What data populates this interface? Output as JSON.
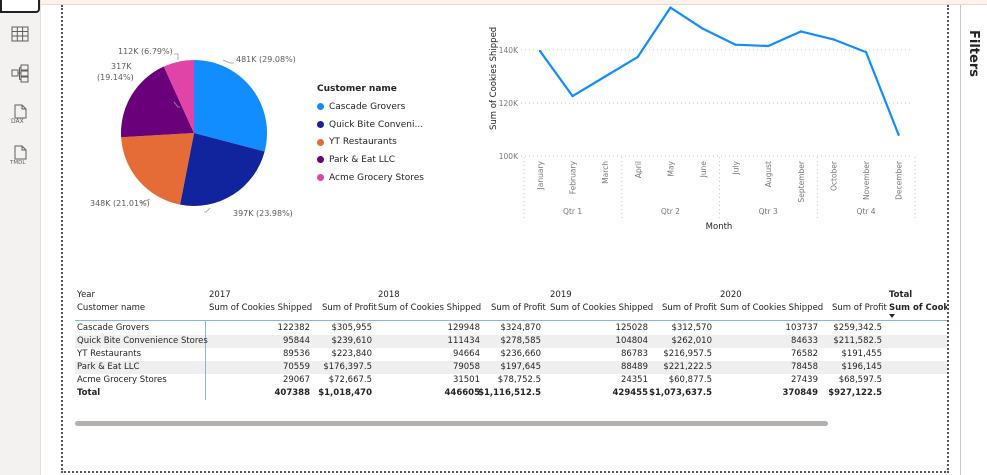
{
  "sidebar": {
    "items": [
      {
        "icon": "table-view-icon"
      },
      {
        "icon": "model-view-icon"
      },
      {
        "icon": "dax-query-icon",
        "label": "DAX"
      },
      {
        "icon": "tmdl-view-icon",
        "label": "TMDL"
      }
    ]
  },
  "filters_pane": {
    "label": "Filters"
  },
  "pie": {
    "legend_title": "Customer name",
    "slices": [
      {
        "name": "Cascade Grovers",
        "legend": "Cascade Grovers",
        "label": "481K (29.08%)",
        "percent": 29.08,
        "color": "#118dff"
      },
      {
        "name": "Quick Bite Convenience Stores",
        "legend": "Quick Bite Conveni...",
        "label": "397K (23.98%)",
        "percent": 23.98,
        "color": "#12239e"
      },
      {
        "name": "YT Restaurants",
        "legend": "YT Restaurants",
        "label": "348K (21.01%)",
        "percent": 21.01,
        "color": "#e66c37"
      },
      {
        "name": "Park & Eat LLC",
        "legend": "Park & Eat LLC",
        "label": "317K (19.14%)",
        "label_line1": "317K",
        "label_line2": "(19.14%)",
        "percent": 19.14,
        "color": "#6b007b"
      },
      {
        "name": "Acme Grocery Stores",
        "legend": "Acme Grocery Stores",
        "label": "112K (6.79%)",
        "percent": 6.79,
        "color": "#e044a7"
      }
    ]
  },
  "chart_data": {
    "type": "line",
    "xlabel": "Month",
    "ylabel": "Sum of Cookies Shipped",
    "categories": [
      "January",
      "February",
      "March",
      "April",
      "May",
      "June",
      "July",
      "August",
      "September",
      "October",
      "November",
      "December"
    ],
    "groups": [
      "Qtr 1",
      "Qtr 2",
      "Qtr 3",
      "Qtr 4"
    ],
    "values": [
      139600,
      122600,
      130000,
      137400,
      156000,
      148000,
      142000,
      141500,
      147000,
      144000,
      139200,
      108000
    ],
    "yticks": [
      "100K",
      "120K",
      "140K"
    ],
    "ylim": [
      100000,
      158000
    ],
    "grid": true,
    "color": "#118dff"
  },
  "table": {
    "row_header_label": "Customer name",
    "year_label": "Year",
    "years": [
      "2017",
      "2018",
      "2019",
      "2020"
    ],
    "total_label": "Total",
    "measures": [
      "Sum of Cookies Shipped",
      "Sum of Profit"
    ],
    "total_measure": "Sum of Cooki",
    "rows": [
      {
        "name": "Cascade Grovers",
        "cells": [
          "122382",
          "$305,955",
          "129948",
          "$324,870",
          "125028",
          "$312,570",
          "103737",
          "$259,342.5"
        ]
      },
      {
        "name": "Quick Bite Convenience Stores",
        "cells": [
          "95844",
          "$239,610",
          "111434",
          "$278,585",
          "104804",
          "$262,010",
          "84633",
          "$211,582.5"
        ]
      },
      {
        "name": "YT Restaurants",
        "cells": [
          "89536",
          "$223,840",
          "94664",
          "$236,660",
          "86783",
          "$216,957.5",
          "76582",
          "$191,455"
        ]
      },
      {
        "name": "Park & Eat LLC",
        "cells": [
          "70559",
          "$176,397.5",
          "79058",
          "$197,645",
          "88489",
          "$221,222.5",
          "78458",
          "$196,145"
        ]
      },
      {
        "name": "Acme Grocery Stores",
        "cells": [
          "29067",
          "$72,667.5",
          "31501",
          "$78,752.5",
          "24351",
          "$60,877.5",
          "27439",
          "$68,597.5"
        ]
      }
    ],
    "total_row": {
      "name": "Total",
      "cells": [
        "407388",
        "$1,018,470",
        "446605",
        "$1,116,512.5",
        "429455",
        "$1,073,637.5",
        "370849",
        "$927,122.5"
      ]
    }
  }
}
